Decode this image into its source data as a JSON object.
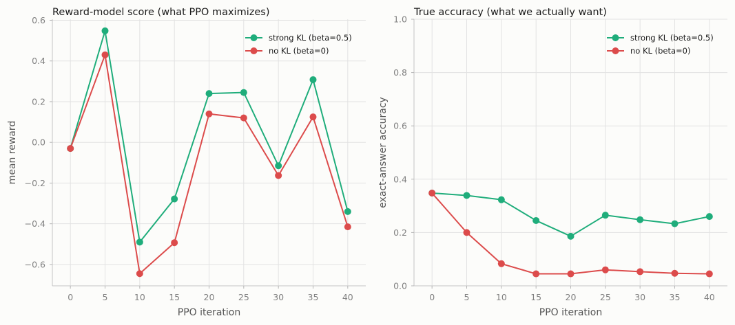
{
  "chart_data": [
    {
      "type": "line",
      "title": "Reward-model score (what PPO maximizes)",
      "xlabel": "PPO iteration",
      "ylabel": "mean reward",
      "x": [
        0,
        5,
        10,
        15,
        20,
        25,
        30,
        35,
        40
      ],
      "xticks": [
        "0",
        "5",
        "10",
        "15",
        "20",
        "25",
        "30",
        "35",
        "40"
      ],
      "yticks": [
        "−0.6",
        "−0.4",
        "−0.2",
        "0.0",
        "0.2",
        "0.4",
        "0.6"
      ],
      "ytick_values": [
        -0.6,
        -0.4,
        -0.2,
        0.0,
        0.2,
        0.4,
        0.6
      ],
      "xlim": [
        -2.6,
        42.6
      ],
      "ylim": [
        -0.705,
        0.605
      ],
      "grid": true,
      "legend": "top-right",
      "series": [
        {
          "name": "strong KL (beta=0.5)",
          "color": "#1fad7b",
          "values": [
            -0.03,
            0.548,
            -0.49,
            -0.278,
            0.24,
            0.245,
            -0.115,
            0.308,
            -0.34
          ]
        },
        {
          "name": "no KL (beta=0)",
          "color": "#dc4b4b",
          "values": [
            -0.03,
            0.43,
            -0.645,
            -0.493,
            0.14,
            0.12,
            -0.163,
            0.125,
            -0.415
          ]
        }
      ]
    },
    {
      "type": "line",
      "title": "True accuracy (what we actually want)",
      "xlabel": "PPO iteration",
      "ylabel": "exact-answer accuracy",
      "x": [
        0,
        5,
        10,
        15,
        20,
        25,
        30,
        35,
        40
      ],
      "xticks": [
        "0",
        "5",
        "10",
        "15",
        "20",
        "25",
        "30",
        "35",
        "40"
      ],
      "yticks": [
        "0.0",
        "0.2",
        "0.4",
        "0.6",
        "0.8",
        "1.0"
      ],
      "ytick_values": [
        0.0,
        0.2,
        0.4,
        0.6,
        0.8,
        1.0
      ],
      "xlim": [
        -2.6,
        42.6
      ],
      "ylim": [
        0.0,
        1.0
      ],
      "grid": true,
      "legend": "top-right",
      "series": [
        {
          "name": "strong KL (beta=0.5)",
          "color": "#1fad7b",
          "values": [
            0.348,
            0.339,
            0.323,
            0.245,
            0.186,
            0.265,
            0.248,
            0.233,
            0.26
          ]
        },
        {
          "name": "no KL (beta=0)",
          "color": "#dc4b4b",
          "values": [
            0.348,
            0.2,
            0.083,
            0.045,
            0.045,
            0.06,
            0.053,
            0.047,
            0.045
          ]
        }
      ]
    }
  ]
}
